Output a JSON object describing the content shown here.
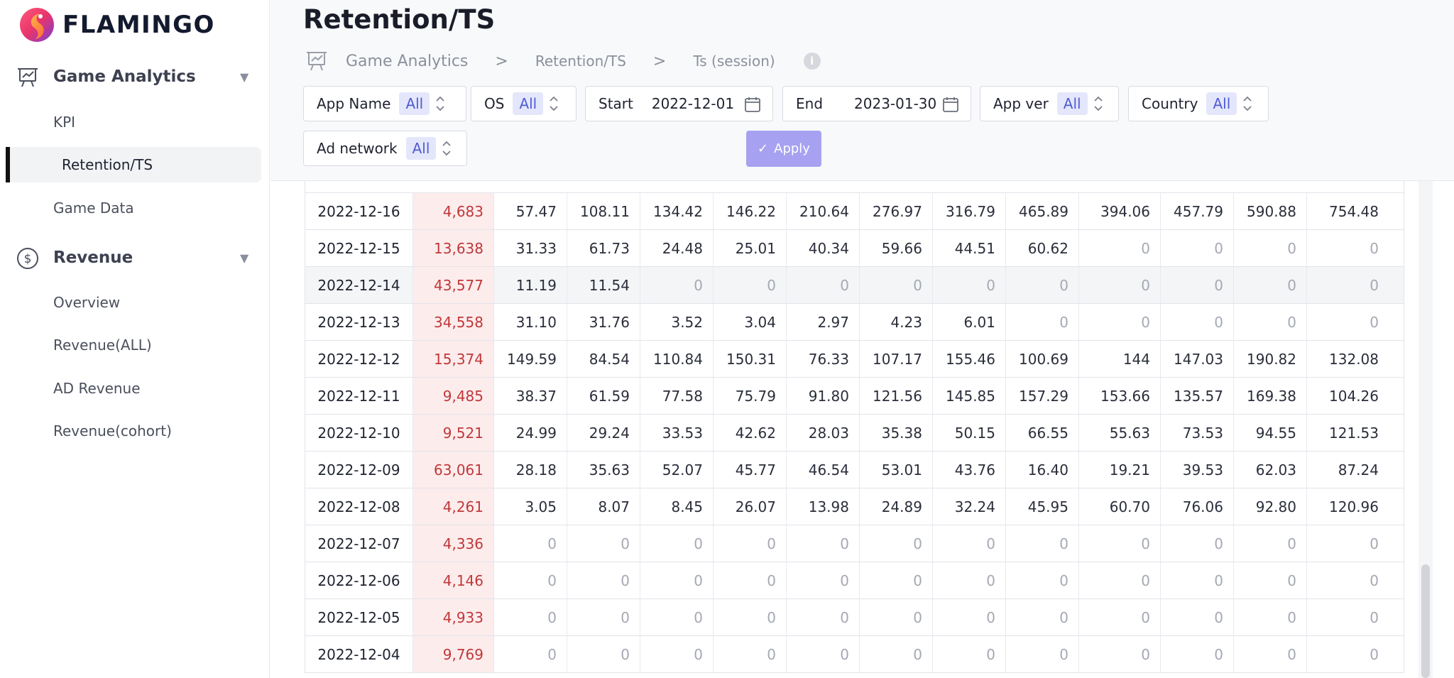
{
  "brand": {
    "name": "FLAMINGO"
  },
  "sidebar": {
    "sections": [
      {
        "label": "Game Analytics",
        "icon": "presentation-chart-icon",
        "items": [
          {
            "label": "KPI"
          },
          {
            "label": "Retention/TS",
            "active": true
          },
          {
            "label": "Game Data"
          }
        ]
      },
      {
        "label": "Revenue",
        "icon": "dollar-circle-icon",
        "items": [
          {
            "label": "Overview"
          },
          {
            "label": "Revenue(ALL)"
          },
          {
            "label": "AD Revenue"
          },
          {
            "label": "Revenue(cohort)"
          }
        ]
      }
    ]
  },
  "header": {
    "title": "Retention/TS",
    "breadcrumb": [
      "Game Analytics",
      "Retention/TS",
      "Ts (session)"
    ],
    "breadcrumb_sep": ">",
    "info_icon": "i"
  },
  "filters": {
    "app_name": {
      "label": "App Name",
      "value": "All"
    },
    "os": {
      "label": "OS",
      "value": "All"
    },
    "start": {
      "label": "Start",
      "value": "2022-12-01"
    },
    "end": {
      "label": "End",
      "value": "2023-01-30"
    },
    "app_ver": {
      "label": "App ver",
      "value": "All"
    },
    "country": {
      "label": "Country",
      "value": "All"
    },
    "ad_network": {
      "label": "Ad network",
      "value": "All"
    },
    "apply_label": "Apply"
  },
  "colors": {
    "accent": "#a6a2f1",
    "badge_bg": "#e4e7fb",
    "badge_text": "#4f5bd5",
    "users_bg": "#fdecec",
    "users_text": "#c0383a"
  },
  "table": {
    "rows": [
      {
        "date": "2022-12-16",
        "users": "4,683",
        "values": [
          "57.47",
          "108.11",
          "134.42",
          "146.22",
          "210.64",
          "276.97",
          "316.79",
          "465.89",
          "394.06",
          "457.79",
          "590.88",
          "754.48"
        ]
      },
      {
        "date": "2022-12-15",
        "users": "13,638",
        "values": [
          "31.33",
          "61.73",
          "24.48",
          "25.01",
          "40.34",
          "59.66",
          "44.51",
          "60.62",
          "0",
          "0",
          "0",
          "0"
        ]
      },
      {
        "date": "2022-12-14",
        "users": "43,577",
        "values": [
          "11.19",
          "11.54",
          "0",
          "0",
          "0",
          "0",
          "0",
          "0",
          "0",
          "0",
          "0",
          "0"
        ]
      },
      {
        "date": "2022-12-13",
        "users": "34,558",
        "values": [
          "31.10",
          "31.76",
          "3.52",
          "3.04",
          "2.97",
          "4.23",
          "6.01",
          "0",
          "0",
          "0",
          "0",
          "0"
        ]
      },
      {
        "date": "2022-12-12",
        "users": "15,374",
        "values": [
          "149.59",
          "84.54",
          "110.84",
          "150.31",
          "76.33",
          "107.17",
          "155.46",
          "100.69",
          "144",
          "147.03",
          "190.82",
          "132.08"
        ]
      },
      {
        "date": "2022-12-11",
        "users": "9,485",
        "values": [
          "38.37",
          "61.59",
          "77.58",
          "75.79",
          "91.80",
          "121.56",
          "145.85",
          "157.29",
          "153.66",
          "135.57",
          "169.38",
          "104.26"
        ]
      },
      {
        "date": "2022-12-10",
        "users": "9,521",
        "values": [
          "24.99",
          "29.24",
          "33.53",
          "42.62",
          "28.03",
          "35.38",
          "50.15",
          "66.55",
          "55.63",
          "73.53",
          "94.55",
          "121.53"
        ]
      },
      {
        "date": "2022-12-09",
        "users": "63,061",
        "values": [
          "28.18",
          "35.63",
          "52.07",
          "45.77",
          "46.54",
          "53.01",
          "43.76",
          "16.40",
          "19.21",
          "39.53",
          "62.03",
          "87.24"
        ]
      },
      {
        "date": "2022-12-08",
        "users": "4,261",
        "values": [
          "3.05",
          "8.07",
          "8.45",
          "26.07",
          "13.98",
          "24.89",
          "32.24",
          "45.95",
          "60.70",
          "76.06",
          "92.80",
          "120.96"
        ]
      },
      {
        "date": "2022-12-07",
        "users": "4,336",
        "values": [
          "0",
          "0",
          "0",
          "0",
          "0",
          "0",
          "0",
          "0",
          "0",
          "0",
          "0",
          "0"
        ]
      },
      {
        "date": "2022-12-06",
        "users": "4,146",
        "values": [
          "0",
          "0",
          "0",
          "0",
          "0",
          "0",
          "0",
          "0",
          "0",
          "0",
          "0",
          "0"
        ]
      },
      {
        "date": "2022-12-05",
        "users": "4,933",
        "values": [
          "0",
          "0",
          "0",
          "0",
          "0",
          "0",
          "0",
          "0",
          "0",
          "0",
          "0",
          "0"
        ]
      },
      {
        "date": "2022-12-04",
        "users": "9,769",
        "values": [
          "0",
          "0",
          "0",
          "0",
          "0",
          "0",
          "0",
          "0",
          "0",
          "0",
          "0",
          "0"
        ]
      }
    ]
  }
}
